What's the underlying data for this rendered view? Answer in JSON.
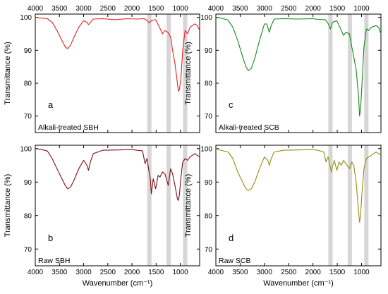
{
  "chart_data": {
    "type": "line",
    "x_axis_label": "Wavenumber (cm⁻¹)",
    "y_axis_label": "Transmittance (%)",
    "xlim": [
      4000,
      600
    ],
    "ylim": [
      65,
      101
    ],
    "x_ticks": [
      4000,
      3500,
      3000,
      2500,
      2000,
      1500,
      1000
    ],
    "top_x_ticks": [
      4000,
      3500,
      3000,
      2500,
      2000,
      1500,
      1000
    ],
    "y_ticks": [
      70,
      80,
      90,
      100
    ],
    "highlight_bands": [
      1640,
      1240,
      900
    ],
    "panels": [
      {
        "letter": "a",
        "caption": "Alkali-treated SBH",
        "color": "#e8231f",
        "points": [
          [
            4000,
            100
          ],
          [
            3900,
            99.8
          ],
          [
            3750,
            99.6
          ],
          [
            3650,
            98.5
          ],
          [
            3550,
            96
          ],
          [
            3450,
            93
          ],
          [
            3380,
            91
          ],
          [
            3330,
            90.5
          ],
          [
            3270,
            91.5
          ],
          [
            3200,
            94
          ],
          [
            3100,
            97
          ],
          [
            3000,
            99
          ],
          [
            2930,
            98.5
          ],
          [
            2900,
            97.8
          ],
          [
            2860,
            98.5
          ],
          [
            2800,
            99.5
          ],
          [
            2600,
            99.6
          ],
          [
            2350,
            99.3
          ],
          [
            2100,
            99.6
          ],
          [
            1900,
            99.5
          ],
          [
            1750,
            99.6
          ],
          [
            1700,
            99.2
          ],
          [
            1640,
            98.3
          ],
          [
            1600,
            99
          ],
          [
            1510,
            99.3
          ],
          [
            1430,
            97
          ],
          [
            1370,
            95
          ],
          [
            1320,
            96
          ],
          [
            1260,
            95.5
          ],
          [
            1200,
            94
          ],
          [
            1160,
            90
          ],
          [
            1110,
            86
          ],
          [
            1060,
            80
          ],
          [
            1040,
            77.5
          ],
          [
            1020,
            78
          ],
          [
            990,
            81
          ],
          [
            950,
            90
          ],
          [
            900,
            96
          ],
          [
            850,
            95
          ],
          [
            800,
            97
          ],
          [
            700,
            98
          ],
          [
            650,
            97.5
          ],
          [
            600,
            96
          ]
        ]
      },
      {
        "letter": "b",
        "caption": "Raw SBH",
        "color": "#7b0f14",
        "points": [
          [
            4000,
            100
          ],
          [
            3900,
            99.8
          ],
          [
            3750,
            99.3
          ],
          [
            3650,
            97
          ],
          [
            3550,
            94
          ],
          [
            3450,
            91
          ],
          [
            3380,
            89
          ],
          [
            3330,
            88
          ],
          [
            3270,
            88.5
          ],
          [
            3200,
            90.5
          ],
          [
            3100,
            94
          ],
          [
            3000,
            96.5
          ],
          [
            2930,
            95
          ],
          [
            2900,
            93.5
          ],
          [
            2860,
            96
          ],
          [
            2800,
            98.5
          ],
          [
            2600,
            99.5
          ],
          [
            2300,
            99.6
          ],
          [
            2000,
            99.7
          ],
          [
            1900,
            99.5
          ],
          [
            1780,
            99.3
          ],
          [
            1730,
            95.5
          ],
          [
            1690,
            97
          ],
          [
            1650,
            93.5
          ],
          [
            1620,
            91
          ],
          [
            1600,
            86.5
          ],
          [
            1560,
            91
          ],
          [
            1510,
            88
          ],
          [
            1460,
            92
          ],
          [
            1420,
            91.5
          ],
          [
            1370,
            93
          ],
          [
            1320,
            92.5
          ],
          [
            1250,
            89
          ],
          [
            1200,
            94
          ],
          [
            1160,
            92.5
          ],
          [
            1110,
            89
          ],
          [
            1060,
            85
          ],
          [
            1040,
            84.5
          ],
          [
            1020,
            86
          ],
          [
            990,
            91
          ],
          [
            950,
            96
          ],
          [
            900,
            97
          ],
          [
            850,
            96.5
          ],
          [
            800,
            97.5
          ],
          [
            700,
            98.5
          ],
          [
            650,
            98
          ],
          [
            600,
            97.5
          ]
        ]
      },
      {
        "letter": "c",
        "caption": "Alkali-treated SCB",
        "color": "#14891a",
        "points": [
          [
            4000,
            100
          ],
          [
            3900,
            99.8
          ],
          [
            3750,
            99.2
          ],
          [
            3650,
            97
          ],
          [
            3550,
            93
          ],
          [
            3450,
            88
          ],
          [
            3380,
            85
          ],
          [
            3330,
            83.8
          ],
          [
            3270,
            84.5
          ],
          [
            3200,
            87.5
          ],
          [
            3100,
            93
          ],
          [
            3000,
            98
          ],
          [
            2950,
            98
          ],
          [
            2920,
            96.5
          ],
          [
            2900,
            95.5
          ],
          [
            2860,
            97.5
          ],
          [
            2800,
            99.5
          ],
          [
            2600,
            99.6
          ],
          [
            2300,
            99.5
          ],
          [
            2000,
            99.6
          ],
          [
            1900,
            99.4
          ],
          [
            1750,
            99.3
          ],
          [
            1700,
            98.5
          ],
          [
            1640,
            96.5
          ],
          [
            1600,
            98.5
          ],
          [
            1510,
            99
          ],
          [
            1430,
            96.5
          ],
          [
            1370,
            94.5
          ],
          [
            1320,
            95.5
          ],
          [
            1250,
            95
          ],
          [
            1200,
            91
          ],
          [
            1160,
            88
          ],
          [
            1110,
            84
          ],
          [
            1060,
            76
          ],
          [
            1040,
            70
          ],
          [
            1020,
            72
          ],
          [
            990,
            80
          ],
          [
            950,
            91
          ],
          [
            900,
            96.5
          ],
          [
            850,
            96
          ],
          [
            800,
            97
          ],
          [
            700,
            97.5
          ],
          [
            650,
            97
          ],
          [
            600,
            95
          ]
        ]
      },
      {
        "letter": "d",
        "caption": "Raw SCB",
        "color": "#8f8f14",
        "points": [
          [
            4000,
            100
          ],
          [
            3900,
            99.5
          ],
          [
            3750,
            99
          ],
          [
            3650,
            97
          ],
          [
            3550,
            93
          ],
          [
            3450,
            90
          ],
          [
            3380,
            88
          ],
          [
            3330,
            87.5
          ],
          [
            3270,
            88
          ],
          [
            3200,
            90
          ],
          [
            3100,
            94
          ],
          [
            3000,
            97.5
          ],
          [
            2930,
            96.5
          ],
          [
            2900,
            95
          ],
          [
            2860,
            97
          ],
          [
            2800,
            99
          ],
          [
            2600,
            99.5
          ],
          [
            2300,
            99.6
          ],
          [
            2000,
            99.7
          ],
          [
            1900,
            99.5
          ],
          [
            1780,
            99
          ],
          [
            1730,
            96
          ],
          [
            1690,
            97.5
          ],
          [
            1650,
            95
          ],
          [
            1620,
            93
          ],
          [
            1600,
            94.5
          ],
          [
            1560,
            96.5
          ],
          [
            1510,
            93.5
          ],
          [
            1460,
            96
          ],
          [
            1420,
            95
          ],
          [
            1370,
            96.5
          ],
          [
            1320,
            95.5
          ],
          [
            1250,
            94
          ],
          [
            1200,
            96
          ],
          [
            1160,
            95
          ],
          [
            1110,
            90
          ],
          [
            1060,
            81
          ],
          [
            1040,
            78
          ],
          [
            1020,
            80
          ],
          [
            990,
            87
          ],
          [
            950,
            94
          ],
          [
            900,
            97
          ],
          [
            850,
            97.5
          ],
          [
            800,
            98
          ],
          [
            700,
            99
          ],
          [
            650,
            98.5
          ],
          [
            600,
            98
          ]
        ]
      }
    ]
  }
}
